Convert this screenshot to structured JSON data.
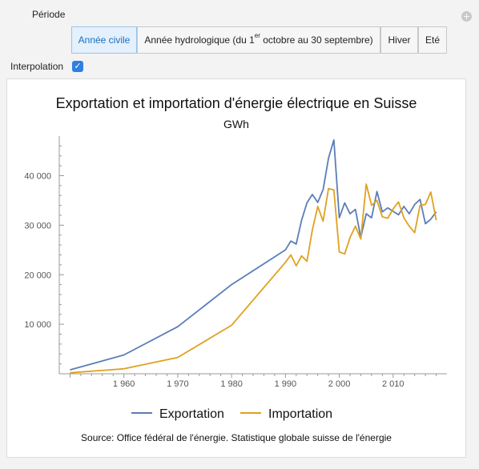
{
  "controls": {
    "period_label": "Période",
    "period_options": [
      {
        "label": "Année civile",
        "active": true
      },
      {
        "label_pre": "Année hydrologique (du 1",
        "label_sup": "er",
        "label_post": " octobre au 30 septembre)",
        "active": false
      },
      {
        "label": "Hiver",
        "active": false
      },
      {
        "label": "Eté",
        "active": false
      }
    ],
    "interpolation_label": "Interpolation",
    "interpolation_checked": true
  },
  "colors": {
    "export": "#5b7db8",
    "import": "#e0a11f"
  },
  "chart_data": {
    "type": "line",
    "title": "Exportation et importation d'énergie électrique en Suisse",
    "subtitle": "GWh",
    "xlim": [
      1948,
      2020
    ],
    "ylim": [
      0,
      48000
    ],
    "x_ticks": [
      1960,
      1970,
      1980,
      1990,
      2000,
      2010
    ],
    "x_tick_labels": [
      "1 960",
      "1 970",
      "1 980",
      "1 990",
      "2 000",
      "2 010"
    ],
    "y_ticks": [
      10000,
      20000,
      30000,
      40000
    ],
    "y_tick_labels": [
      "10 000",
      "20 000",
      "30 000",
      "40 000"
    ],
    "series": [
      {
        "name": "Exportation",
        "color": "#5b7db8",
        "x": [
          1950,
          1960,
          1970,
          1980,
          1990,
          1991,
          1992,
          1993,
          1994,
          1995,
          1996,
          1997,
          1998,
          1999,
          2000,
          2001,
          2002,
          2003,
          2004,
          2005,
          2006,
          2007,
          2008,
          2009,
          2010,
          2011,
          2012,
          2013,
          2014,
          2015,
          2016,
          2017,
          2018
        ],
        "y": [
          800,
          3800,
          9500,
          18000,
          25000,
          26800,
          26200,
          31000,
          34500,
          36200,
          34600,
          37200,
          43500,
          47200,
          31500,
          34500,
          32300,
          33200,
          27500,
          32300,
          31500,
          36800,
          32700,
          33500,
          32800,
          32100,
          33800,
          32300,
          34200,
          35200,
          30300,
          31200,
          32700
        ]
      },
      {
        "name": "Importation",
        "color": "#e0a11f",
        "x": [
          1950,
          1960,
          1970,
          1980,
          1990,
          1991,
          1992,
          1993,
          1994,
          1995,
          1996,
          1997,
          1998,
          1999,
          2000,
          2001,
          2002,
          2003,
          2004,
          2005,
          2006,
          2007,
          2008,
          2009,
          2010,
          2011,
          2012,
          2013,
          2014,
          2015,
          2016,
          2017,
          2018
        ],
        "y": [
          200,
          1000,
          3300,
          9800,
          22500,
          24000,
          21800,
          23800,
          22700,
          29000,
          33800,
          30800,
          37400,
          37100,
          24600,
          24200,
          27500,
          29800,
          27200,
          38300,
          34000,
          35000,
          31700,
          31400,
          33300,
          34700,
          31500,
          29800,
          28500,
          34000,
          34200,
          36700,
          31000
        ]
      }
    ],
    "legend": [
      "Exportation",
      "Importation"
    ],
    "legend_position": "bottom"
  },
  "source": "Source: Office fédéral de l'énergie. Statistique globale suisse de l'énergie"
}
